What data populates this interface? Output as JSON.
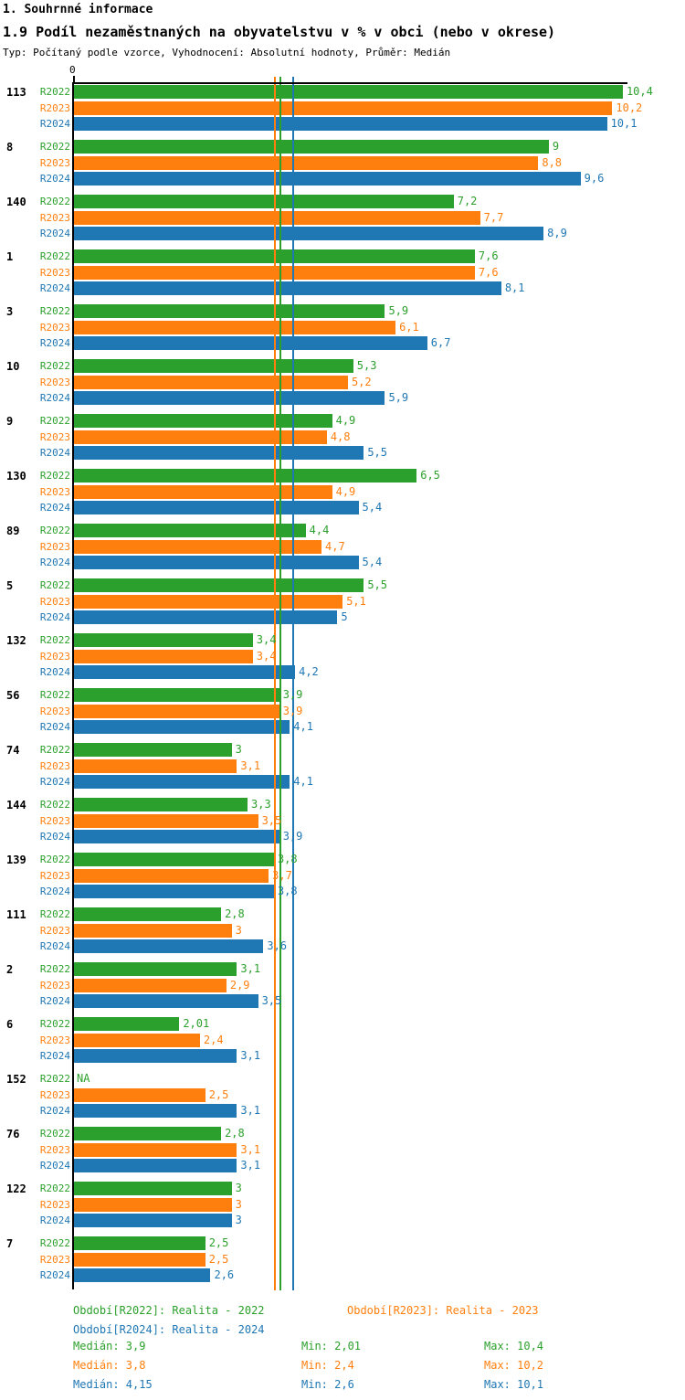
{
  "header": {
    "title": "1. Souhrnné informace",
    "subtitle": "1.9 Podíl nezaměstnaných na obyvatelstvu v % v obci (nebo v okrese)",
    "meta": "Typ: Počítaný podle vzorce, Vyhodnocení: Absolutní hodnoty, Průměr: Medián"
  },
  "colors": {
    "r2022": "#2ca02c",
    "r2023": "#ff7f0e",
    "r2024": "#1f77b4",
    "axis": "#000000",
    "background": "#ffffff"
  },
  "chart_data": {
    "type": "bar",
    "orientation": "horizontal",
    "title": "1.9 Podíl nezaměstnaných na obyvatelstvu v % v obci (nebo v okrese)",
    "xlabel": "",
    "ylabel": "",
    "xlim": [
      0,
      10.5
    ],
    "axis_zero_label": "0",
    "grid": false,
    "legend_position": "bottom",
    "series_labels": [
      "R2022",
      "R2023",
      "R2024"
    ],
    "groups": [
      {
        "label": "113",
        "values": [
          10.4,
          10.2,
          10.1
        ],
        "display": [
          "10,4",
          "10,2",
          "10,1"
        ]
      },
      {
        "label": "8",
        "values": [
          9,
          8.8,
          9.6
        ],
        "display": [
          "9",
          "8,8",
          "9,6"
        ]
      },
      {
        "label": "140",
        "values": [
          7.2,
          7.7,
          8.9
        ],
        "display": [
          "7,2",
          "7,7",
          "8,9"
        ]
      },
      {
        "label": "1",
        "values": [
          7.6,
          7.6,
          8.1
        ],
        "display": [
          "7,6",
          "7,6",
          "8,1"
        ]
      },
      {
        "label": "3",
        "values": [
          5.9,
          6.1,
          6.7
        ],
        "display": [
          "5,9",
          "6,1",
          "6,7"
        ]
      },
      {
        "label": "10",
        "values": [
          5.3,
          5.2,
          5.9
        ],
        "display": [
          "5,3",
          "5,2",
          "5,9"
        ]
      },
      {
        "label": "9",
        "values": [
          4.9,
          4.8,
          5.5
        ],
        "display": [
          "4,9",
          "4,8",
          "5,5"
        ]
      },
      {
        "label": "130",
        "values": [
          6.5,
          4.9,
          5.4
        ],
        "display": [
          "6,5",
          "4,9",
          "5,4"
        ]
      },
      {
        "label": "89",
        "values": [
          4.4,
          4.7,
          5.4
        ],
        "display": [
          "4,4",
          "4,7",
          "5,4"
        ]
      },
      {
        "label": "5",
        "values": [
          5.5,
          5.1,
          5
        ],
        "display": [
          "5,5",
          "5,1",
          "5"
        ]
      },
      {
        "label": "132",
        "values": [
          3.4,
          3.4,
          4.2
        ],
        "display": [
          "3,4",
          "3,4",
          "4,2"
        ]
      },
      {
        "label": "56",
        "values": [
          3.9,
          3.9,
          4.1
        ],
        "display": [
          "3,9",
          "3,9",
          "4,1"
        ]
      },
      {
        "label": "74",
        "values": [
          3,
          3.1,
          4.1
        ],
        "display": [
          "3",
          "3,1",
          "4,1"
        ]
      },
      {
        "label": "144",
        "values": [
          3.3,
          3.5,
          3.9
        ],
        "display": [
          "3,3",
          "3,5",
          "3,9"
        ]
      },
      {
        "label": "139",
        "values": [
          3.8,
          3.7,
          3.8
        ],
        "display": [
          "3,8",
          "3,7",
          "3,8"
        ]
      },
      {
        "label": "111",
        "values": [
          2.8,
          3,
          3.6
        ],
        "display": [
          "2,8",
          "3",
          "3,6"
        ]
      },
      {
        "label": "2",
        "values": [
          3.1,
          2.9,
          3.5
        ],
        "display": [
          "3,1",
          "2,9",
          "3,5"
        ]
      },
      {
        "label": "6",
        "values": [
          2.01,
          2.4,
          3.1
        ],
        "display": [
          "2,01",
          "2,4",
          "3,1"
        ]
      },
      {
        "label": "152",
        "values": [
          null,
          2.5,
          3.1
        ],
        "display": [
          "NA",
          "2,5",
          "3,1"
        ]
      },
      {
        "label": "76",
        "values": [
          2.8,
          3.1,
          3.1
        ],
        "display": [
          "2,8",
          "3,1",
          "3,1"
        ]
      },
      {
        "label": "122",
        "values": [
          3,
          3,
          3
        ],
        "display": [
          "3",
          "3",
          "3"
        ]
      },
      {
        "label": "7",
        "values": [
          2.5,
          2.5,
          2.6
        ],
        "display": [
          "2,5",
          "2,5",
          "2,6"
        ]
      }
    ],
    "medians": {
      "R2022": 3.9,
      "R2023": 3.8,
      "R2024": 4.15
    },
    "min": {
      "R2022": 2.01,
      "R2023": 2.4,
      "R2024": 2.6
    },
    "max": {
      "R2022": 10.4,
      "R2023": 10.2,
      "R2024": 10.1
    }
  },
  "legend": {
    "entries": [
      {
        "id": "r2022",
        "label": "Období[R2022]: Realita - 2022",
        "color": "#2ca02c"
      },
      {
        "id": "r2023",
        "label": "Období[R2023]: Realita - 2023",
        "color": "#ff7f0e"
      },
      {
        "id": "r2024",
        "label": "Období[R2024]: Realita - 2024",
        "color": "#1f77b4"
      }
    ],
    "stats": [
      {
        "id": "r2022",
        "median": "Medián: 3,9",
        "min": "Min: 2,01",
        "max": "Max: 10,4",
        "color": "#2ca02c"
      },
      {
        "id": "r2023",
        "median": "Medián: 3,8",
        "min": "Min: 2,4",
        "max": "Max: 10,2",
        "color": "#ff7f0e"
      },
      {
        "id": "r2024",
        "median": "Medián: 4,15",
        "min": "Min: 2,6",
        "max": "Max: 10,1",
        "color": "#1f77b4"
      }
    ]
  }
}
